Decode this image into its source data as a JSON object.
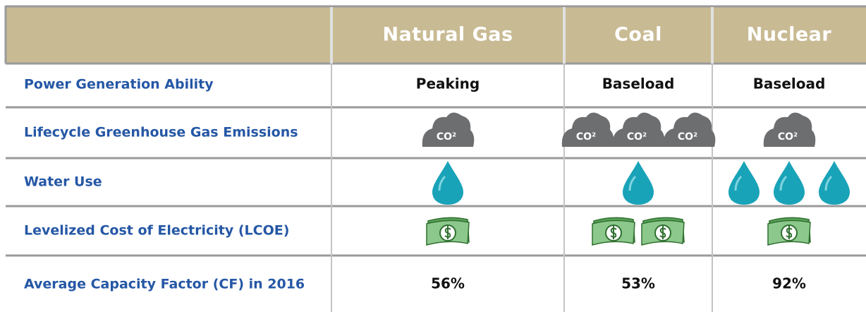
{
  "table": {
    "columns": [
      "Natural Gas",
      "Coal",
      "Nuclear"
    ],
    "rows": [
      {
        "label": "Power Generation Ability",
        "cells": [
          "Peaking",
          "Baseload",
          "Baseload"
        ]
      },
      {
        "label": "Lifecycle Greenhouse Gas Emissions",
        "icon": "cloud",
        "icon_text": "CO²",
        "counts": [
          1,
          3,
          1
        ]
      },
      {
        "label": "Water Use",
        "icon": "drop",
        "counts": [
          1,
          1,
          3
        ]
      },
      {
        "label": "Levelized Cost of Electricity (LCOE)",
        "icon": "money",
        "counts": [
          1,
          2,
          1
        ]
      },
      {
        "label": "Average Capacity Factor (CF) in 2016",
        "cells": [
          "56%",
          "53%",
          "92%"
        ]
      }
    ]
  }
}
